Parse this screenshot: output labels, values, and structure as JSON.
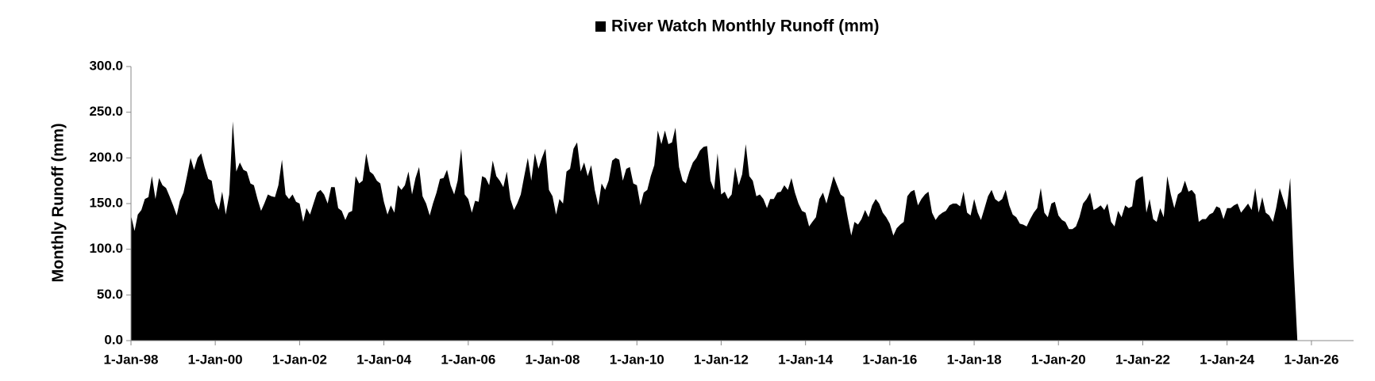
{
  "chart_data": {
    "type": "area",
    "y_label": "Monthly Runoff (mm)",
    "legend": "top",
    "x": [
      "1998-01-01",
      "1998-02-01",
      "1998-03-01",
      "1998-04-01",
      "1998-05-01",
      "1998-06-01",
      "1998-07-01",
      "1998-08-01",
      "1998-09-01",
      "1998-10-01",
      "1998-11-01",
      "1998-12-01",
      "1999-01-01",
      "1999-02-01",
      "1999-03-01",
      "1999-04-01",
      "1999-05-01",
      "1999-06-01",
      "1999-07-01",
      "1999-08-01",
      "1999-09-01",
      "1999-10-01",
      "1999-11-01",
      "1999-12-01",
      "2000-01-01",
      "2000-02-01",
      "2000-03-01",
      "2000-04-01",
      "2000-05-01",
      "2000-06-01",
      "2000-07-01",
      "2000-08-01",
      "2000-09-01",
      "2000-10-01",
      "2000-11-01",
      "2000-12-01",
      "2001-01-01",
      "2001-02-01",
      "2001-03-01",
      "2001-04-01",
      "2001-05-01",
      "2001-06-01",
      "2001-07-01",
      "2001-08-01",
      "2001-09-01",
      "2001-10-01",
      "2001-11-01",
      "2001-12-01",
      "2002-01-01",
      "2002-02-01",
      "2002-03-01",
      "2002-04-01",
      "2002-05-01",
      "2002-06-01",
      "2002-07-01",
      "2002-08-01",
      "2002-09-01",
      "2002-10-01",
      "2002-11-01",
      "2002-12-01",
      "2003-01-01",
      "2003-02-01",
      "2003-03-01",
      "2003-04-01",
      "2003-05-01",
      "2003-06-01",
      "2003-07-01",
      "2003-08-01",
      "2003-09-01",
      "2003-10-01",
      "2003-11-01",
      "2003-12-01",
      "2004-01-01",
      "2004-02-01",
      "2004-03-01",
      "2004-04-01",
      "2004-05-01",
      "2004-06-01",
      "2004-07-01",
      "2004-08-01",
      "2004-09-01",
      "2004-10-01",
      "2004-11-01",
      "2004-12-01",
      "2005-01-01",
      "2005-02-01",
      "2005-03-01",
      "2005-04-01",
      "2005-05-01",
      "2005-06-01",
      "2005-07-01",
      "2005-08-01",
      "2005-09-01",
      "2005-10-01",
      "2005-11-01",
      "2005-12-01",
      "2006-01-01",
      "2006-02-01",
      "2006-03-01",
      "2006-04-01",
      "2006-05-01",
      "2006-06-01",
      "2006-07-01",
      "2006-08-01",
      "2006-09-01",
      "2006-10-01",
      "2006-11-01",
      "2006-12-01",
      "2007-01-01",
      "2007-02-01",
      "2007-03-01",
      "2007-04-01",
      "2007-05-01",
      "2007-06-01",
      "2007-07-01",
      "2007-08-01",
      "2007-09-01",
      "2007-10-01",
      "2007-11-01",
      "2007-12-01",
      "2008-01-01",
      "2008-02-01",
      "2008-03-01",
      "2008-04-01",
      "2008-05-01",
      "2008-06-01",
      "2008-07-01",
      "2008-08-01",
      "2008-09-01",
      "2008-10-01",
      "2008-11-01",
      "2008-12-01",
      "2009-01-01",
      "2009-02-01",
      "2009-03-01",
      "2009-04-01",
      "2009-05-01",
      "2009-06-01",
      "2009-07-01",
      "2009-08-01",
      "2009-09-01",
      "2009-10-01",
      "2009-11-01",
      "2009-12-01",
      "2010-01-01",
      "2010-02-01",
      "2010-03-01",
      "2010-04-01",
      "2010-05-01",
      "2010-06-01",
      "2010-07-01",
      "2010-08-01",
      "2010-09-01",
      "2010-10-01",
      "2010-11-01",
      "2010-12-01",
      "2011-01-01",
      "2011-02-01",
      "2011-03-01",
      "2011-04-01",
      "2011-05-01",
      "2011-06-01",
      "2011-07-01",
      "2011-08-01",
      "2011-09-01",
      "2011-10-01",
      "2011-11-01",
      "2011-12-01",
      "2012-01-01",
      "2012-02-01",
      "2012-03-01",
      "2012-04-01",
      "2012-05-01",
      "2012-06-01",
      "2012-07-01",
      "2012-08-01",
      "2012-09-01",
      "2012-10-01",
      "2012-11-01",
      "2012-12-01",
      "2013-01-01",
      "2013-02-01",
      "2013-03-01",
      "2013-04-01",
      "2013-05-01",
      "2013-06-01",
      "2013-07-01",
      "2013-08-01",
      "2013-09-01",
      "2013-10-01",
      "2013-11-01",
      "2013-12-01",
      "2014-01-01",
      "2014-02-01",
      "2014-03-01",
      "2014-04-01",
      "2014-05-01",
      "2014-06-01",
      "2014-07-01",
      "2014-08-01",
      "2014-09-01",
      "2014-10-01",
      "2014-11-01",
      "2014-12-01",
      "2015-01-01",
      "2015-02-01",
      "2015-03-01",
      "2015-04-01",
      "2015-05-01",
      "2015-06-01",
      "2015-07-01",
      "2015-08-01",
      "2015-09-01",
      "2015-10-01",
      "2015-11-01",
      "2015-12-01",
      "2016-01-01",
      "2016-02-01",
      "2016-03-01",
      "2016-04-01",
      "2016-05-01",
      "2016-06-01",
      "2016-07-01",
      "2016-08-01",
      "2016-09-01",
      "2016-10-01",
      "2016-11-01",
      "2016-12-01",
      "2017-01-01",
      "2017-02-01",
      "2017-03-01",
      "2017-04-01",
      "2017-05-01",
      "2017-06-01",
      "2017-07-01",
      "2017-08-01",
      "2017-09-01",
      "2017-10-01",
      "2017-11-01",
      "2017-12-01",
      "2018-01-01",
      "2018-02-01",
      "2018-03-01",
      "2018-04-01",
      "2018-05-01",
      "2018-06-01",
      "2018-07-01",
      "2018-08-01",
      "2018-09-01",
      "2018-10-01",
      "2018-11-01",
      "2018-12-01",
      "2019-01-01",
      "2019-02-01",
      "2019-03-01",
      "2019-04-01",
      "2019-05-01",
      "2019-06-01",
      "2019-07-01",
      "2019-08-01",
      "2019-09-01",
      "2019-10-01",
      "2019-11-01",
      "2019-12-01",
      "2020-01-01",
      "2020-02-01",
      "2020-03-01",
      "2020-04-01",
      "2020-05-01",
      "2020-06-01",
      "2020-07-01",
      "2020-08-01",
      "2020-09-01",
      "2020-10-01",
      "2020-11-01",
      "2020-12-01",
      "2021-01-01",
      "2021-02-01",
      "2021-03-01",
      "2021-04-01",
      "2021-05-01",
      "2021-06-01",
      "2021-07-01",
      "2021-08-01",
      "2021-09-01",
      "2021-10-01",
      "2021-11-01",
      "2021-12-01",
      "2022-01-01",
      "2022-02-01",
      "2022-03-01",
      "2022-04-01",
      "2022-05-01",
      "2022-06-01",
      "2022-07-01",
      "2022-08-01",
      "2022-09-01",
      "2022-10-01",
      "2022-11-01",
      "2022-12-01",
      "2023-01-01",
      "2023-02-01",
      "2023-03-01",
      "2023-04-01",
      "2023-05-01",
      "2023-06-01",
      "2023-07-01",
      "2023-08-01",
      "2023-09-01",
      "2023-10-01",
      "2023-11-01",
      "2023-12-01",
      "2024-01-01",
      "2024-02-01",
      "2024-03-01",
      "2024-04-01",
      "2024-05-01",
      "2024-06-01",
      "2024-07-01",
      "2024-08-01",
      "2024-09-01",
      "2024-10-01",
      "2024-11-01",
      "2024-12-01",
      "2025-01-01",
      "2025-02-01",
      "2025-03-01",
      "2025-04-01",
      "2025-05-01",
      "2025-06-01",
      "2025-07-01",
      "2025-08-01",
      "2025-09-01"
    ],
    "series": [
      {
        "name": "River Watch Monthly Runoff (mm)",
        "color": "#000000",
        "values": [
          137,
          120,
          138,
          143,
          155,
          157,
          180,
          155,
          178,
          170,
          167,
          158,
          148,
          137,
          153,
          162,
          180,
          200,
          187,
          200,
          205,
          190,
          177,
          175,
          152,
          143,
          163,
          138,
          160,
          240,
          185,
          195,
          187,
          185,
          172,
          170,
          155,
          142,
          150,
          160,
          158,
          157,
          170,
          198,
          160,
          155,
          160,
          152,
          150,
          130,
          145,
          138,
          150,
          162,
          165,
          160,
          150,
          168,
          168,
          145,
          142,
          132,
          140,
          142,
          180,
          172,
          175,
          205,
          185,
          182,
          175,
          172,
          152,
          138,
          148,
          140,
          170,
          165,
          170,
          185,
          160,
          178,
          190,
          158,
          150,
          137,
          150,
          162,
          177,
          178,
          187,
          170,
          160,
          175,
          210,
          160,
          155,
          140,
          153,
          152,
          180,
          178,
          170,
          197,
          180,
          175,
          168,
          185,
          155,
          143,
          150,
          160,
          180,
          200,
          175,
          205,
          188,
          200,
          210,
          165,
          158,
          138,
          155,
          150,
          185,
          188,
          210,
          217,
          185,
          195,
          180,
          192,
          165,
          148,
          172,
          165,
          175,
          197,
          200,
          198,
          175,
          188,
          190,
          172,
          170,
          148,
          162,
          165,
          180,
          192,
          230,
          215,
          230,
          215,
          217,
          233,
          190,
          175,
          172,
          185,
          195,
          200,
          208,
          212,
          213,
          175,
          165,
          205,
          160,
          163,
          155,
          160,
          190,
          170,
          182,
          215,
          180,
          175,
          158,
          160,
          155,
          145,
          155,
          155,
          162,
          163,
          170,
          165,
          178,
          162,
          150,
          142,
          140,
          125,
          130,
          135,
          155,
          162,
          150,
          165,
          180,
          170,
          160,
          157,
          135,
          115,
          130,
          127,
          133,
          143,
          135,
          148,
          155,
          150,
          140,
          135,
          128,
          115,
          123,
          127,
          130,
          158,
          163,
          165,
          148,
          155,
          160,
          163,
          140,
          132,
          137,
          140,
          142,
          148,
          150,
          150,
          147,
          163,
          140,
          137,
          155,
          140,
          132,
          145,
          158,
          165,
          155,
          152,
          155,
          165,
          148,
          138,
          135,
          128,
          127,
          125,
          133,
          140,
          145,
          167,
          140,
          135,
          150,
          152,
          137,
          132,
          130,
          122,
          122,
          125,
          135,
          150,
          155,
          162,
          143,
          145,
          148,
          143,
          150,
          130,
          125,
          142,
          135,
          148,
          145,
          147,
          175,
          178,
          180,
          140,
          155,
          133,
          130,
          145,
          135,
          180,
          160,
          145,
          160,
          163,
          175,
          163,
          165,
          160,
          130,
          133,
          133,
          138,
          140,
          147,
          145,
          133,
          145,
          145,
          148,
          150,
          140,
          145,
          150,
          143,
          167,
          140,
          157,
          140,
          137,
          130,
          145,
          167,
          155,
          143,
          178,
          80,
          0
        ]
      }
    ],
    "xlim": [
      "1998-01-01",
      "2027-01-01"
    ],
    "xticks": [
      {
        "value": "1998-01-01",
        "label": "1-Jan-98"
      },
      {
        "value": "2000-01-01",
        "label": "1-Jan-00"
      },
      {
        "value": "2002-01-01",
        "label": "1-Jan-02"
      },
      {
        "value": "2004-01-01",
        "label": "1-Jan-04"
      },
      {
        "value": "2006-01-01",
        "label": "1-Jan-06"
      },
      {
        "value": "2008-01-01",
        "label": "1-Jan-08"
      },
      {
        "value": "2010-01-01",
        "label": "1-Jan-10"
      },
      {
        "value": "2012-01-01",
        "label": "1-Jan-12"
      },
      {
        "value": "2014-01-01",
        "label": "1-Jan-14"
      },
      {
        "value": "2016-01-01",
        "label": "1-Jan-16"
      },
      {
        "value": "2018-01-01",
        "label": "1-Jan-18"
      },
      {
        "value": "2020-01-01",
        "label": "1-Jan-20"
      },
      {
        "value": "2022-01-01",
        "label": "1-Jan-22"
      },
      {
        "value": "2024-01-01",
        "label": "1-Jan-24"
      },
      {
        "value": "2026-01-01",
        "label": "1-Jan-26"
      }
    ],
    "ylim": [
      0,
      300
    ],
    "yticks": [
      {
        "value": 0,
        "label": "0.0"
      },
      {
        "value": 50,
        "label": "50.0"
      },
      {
        "value": 100,
        "label": "100.0"
      },
      {
        "value": 150,
        "label": "150.0"
      },
      {
        "value": 200,
        "label": "200.0"
      },
      {
        "value": 250,
        "label": "250.0"
      },
      {
        "value": 300,
        "label": "300.0"
      }
    ]
  }
}
